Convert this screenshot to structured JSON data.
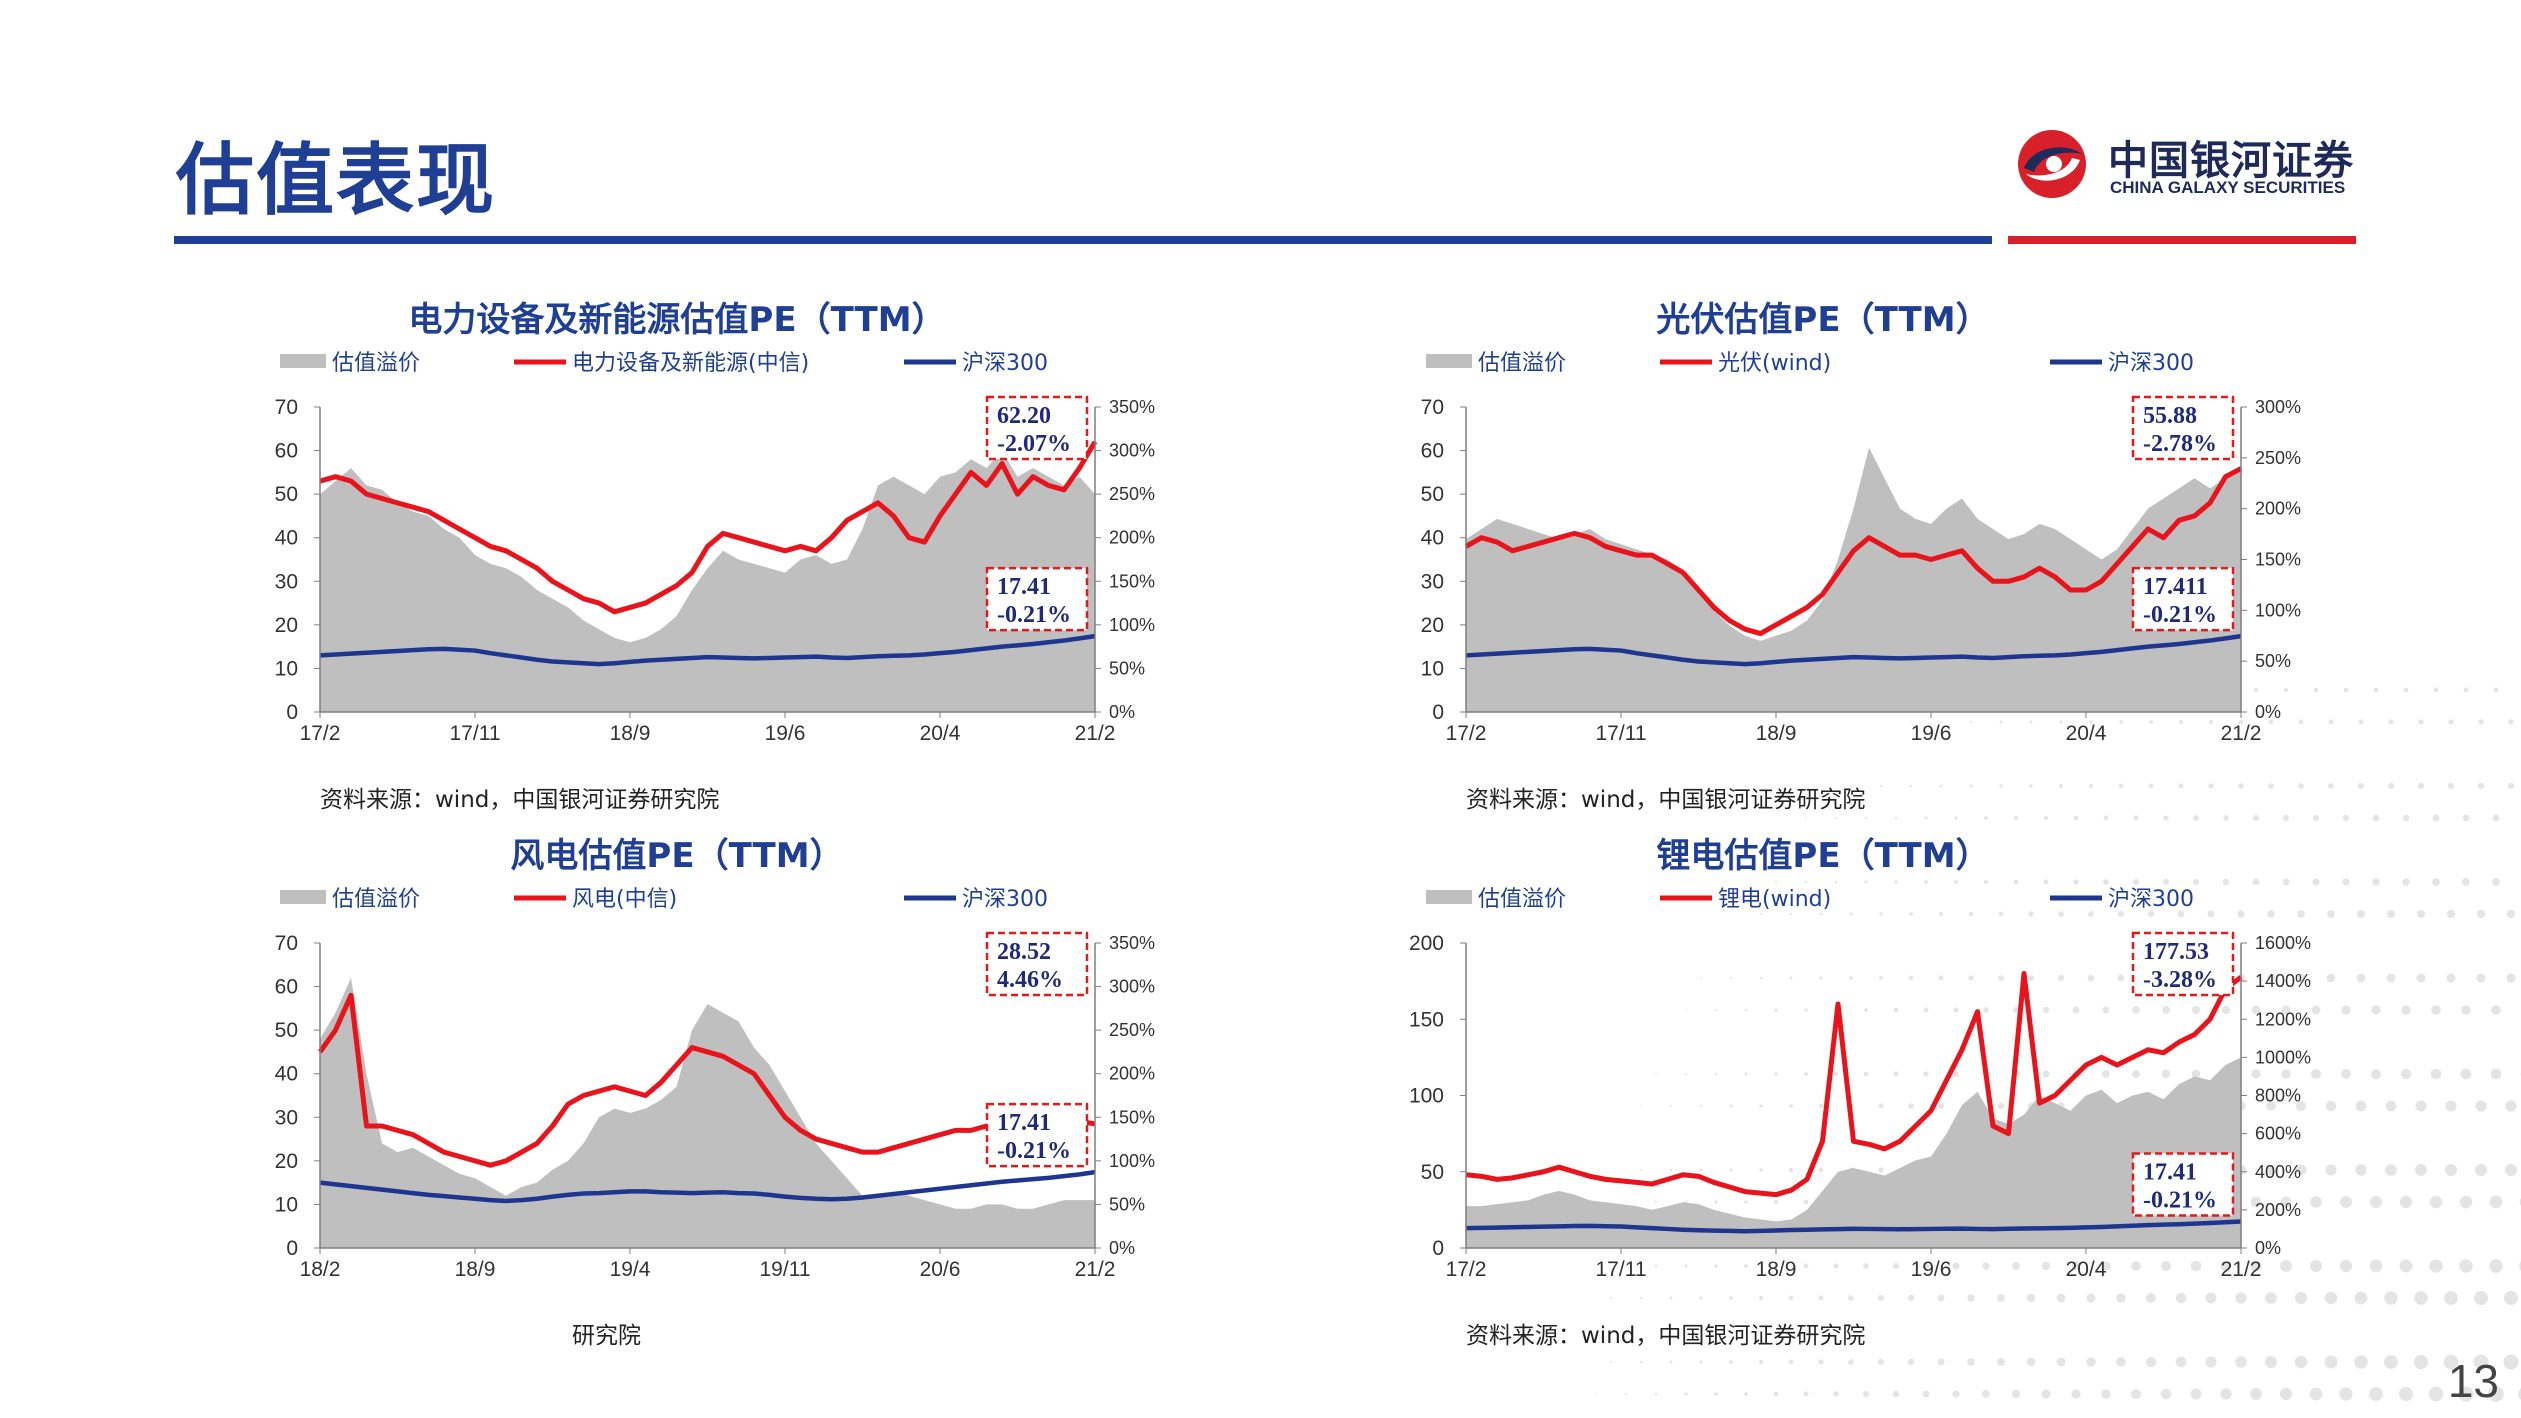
{
  "page": {
    "title": "估值表现",
    "number": "13"
  },
  "logo": {
    "name_cn": "中国银河证券",
    "name_en": "CHINA GALAXY SECURITIES"
  },
  "colors": {
    "brand_blue": "#1f3f94",
    "brand_red": "#d7202a",
    "premium": "#bfbfbf",
    "sector": "#e8131b",
    "hs300": "#1f3690"
  },
  "charts": [
    {
      "source": "资料来源：wind，中国银河证券研究院"
    },
    {
      "source": "资料来源：wind，中国银河证券研究院"
    },
    {
      "source": "研究院"
    },
    {
      "source": "资料来源：wind，中国银河证券研究院"
    }
  ],
  "chart_data": [
    {
      "type": "area",
      "title": "电力设备及新能源估值PE（TTM）",
      "xticks": [
        "17/2",
        "17/11",
        "18/9",
        "19/6",
        "20/4",
        "21/2"
      ],
      "ylim": [
        0,
        70
      ],
      "yticks": [
        0,
        10,
        20,
        30,
        40,
        50,
        60,
        70
      ],
      "y2lim": [
        0,
        350
      ],
      "y2ticks": [
        "0%",
        "50%",
        "100%",
        "150%",
        "200%",
        "250%",
        "300%",
        "350%"
      ],
      "legend": [
        "估值溢价",
        "电力设备及新能源(中信)",
        "沪深300"
      ],
      "annotations": [
        {
          "text": [
            "62.20",
            "-2.07%"
          ],
          "pos": "top"
        },
        {
          "text": [
            "17.41",
            "-0.21%"
          ],
          "pos": "low"
        }
      ],
      "series": [
        {
          "name": "估值溢价",
          "axis": "right",
          "kind": "area",
          "values": [
            250,
            265,
            280,
            260,
            255,
            240,
            230,
            225,
            210,
            200,
            180,
            170,
            165,
            155,
            140,
            130,
            120,
            105,
            95,
            85,
            80,
            85,
            95,
            110,
            140,
            165,
            185,
            175,
            170,
            165,
            160,
            175,
            180,
            170,
            175,
            210,
            260,
            270,
            260,
            250,
            270,
            275,
            290,
            280,
            300,
            270,
            280,
            270,
            260,
            270,
            250
          ]
        },
        {
          "name": "电力设备及新能源(中信)",
          "axis": "left",
          "kind": "line",
          "values": [
            53,
            54,
            53,
            50,
            49,
            48,
            47,
            46,
            44,
            42,
            40,
            38,
            37,
            35,
            33,
            30,
            28,
            26,
            25,
            23,
            24,
            25,
            27,
            29,
            32,
            38,
            41,
            40,
            39,
            38,
            37,
            38,
            37,
            40,
            44,
            46,
            48,
            45,
            40,
            39,
            45,
            50,
            55,
            52,
            57,
            50,
            54,
            52,
            51,
            56,
            62
          ]
        },
        {
          "name": "沪深300",
          "axis": "left",
          "kind": "line",
          "values": [
            13,
            13.2,
            13.4,
            13.6,
            13.8,
            14,
            14.2,
            14.4,
            14.5,
            14.3,
            14.1,
            13.5,
            13,
            12.5,
            12,
            11.6,
            11.4,
            11.2,
            11,
            11.2,
            11.5,
            11.8,
            12,
            12.2,
            12.4,
            12.6,
            12.5,
            12.4,
            12.3,
            12.4,
            12.5,
            12.6,
            12.7,
            12.5,
            12.4,
            12.6,
            12.8,
            12.9,
            13,
            13.2,
            13.5,
            13.8,
            14.2,
            14.6,
            15,
            15.3,
            15.6,
            16,
            16.4,
            16.9,
            17.41
          ]
        }
      ]
    },
    {
      "type": "area",
      "title": "光伏估值PE（TTM）",
      "xticks": [
        "17/2",
        "17/11",
        "18/9",
        "19/6",
        "20/4",
        "21/2"
      ],
      "ylim": [
        0,
        70
      ],
      "yticks": [
        0,
        10,
        20,
        30,
        40,
        50,
        60,
        70
      ],
      "y2lim": [
        0,
        300
      ],
      "y2ticks": [
        "0%",
        "50%",
        "100%",
        "150%",
        "200%",
        "250%",
        "300%"
      ],
      "legend": [
        "估值溢价",
        "光伏(wind)",
        "沪深300"
      ],
      "annotations": [
        {
          "text": [
            "55.88",
            "-2.78%"
          ],
          "pos": "top"
        },
        {
          "text": [
            "17.411",
            "-0.21%"
          ],
          "pos": "low"
        }
      ],
      "series": [
        {
          "name": "估值溢价",
          "axis": "right",
          "kind": "area",
          "values": [
            170,
            180,
            190,
            185,
            180,
            175,
            170,
            175,
            180,
            170,
            165,
            160,
            155,
            150,
            140,
            120,
            100,
            85,
            75,
            70,
            75,
            80,
            90,
            110,
            150,
            200,
            260,
            230,
            200,
            190,
            185,
            200,
            210,
            190,
            180,
            170,
            175,
            185,
            180,
            170,
            160,
            150,
            160,
            180,
            200,
            210,
            220,
            230,
            220,
            230,
            240
          ]
        },
        {
          "name": "光伏(wind)",
          "axis": "left",
          "kind": "line",
          "values": [
            38,
            40,
            39,
            37,
            38,
            39,
            40,
            41,
            40,
            38,
            37,
            36,
            36,
            34,
            32,
            28,
            24,
            21,
            19,
            18,
            20,
            22,
            24,
            27,
            32,
            37,
            40,
            38,
            36,
            36,
            35,
            36,
            37,
            33,
            30,
            30,
            31,
            33,
            31,
            28,
            28,
            30,
            34,
            38,
            42,
            40,
            44,
            45,
            48,
            54,
            55.88
          ]
        },
        {
          "name": "沪深300",
          "axis": "left",
          "kind": "line",
          "values": [
            13,
            13.2,
            13.4,
            13.6,
            13.8,
            14,
            14.2,
            14.4,
            14.5,
            14.3,
            14.1,
            13.5,
            13,
            12.5,
            12,
            11.6,
            11.4,
            11.2,
            11,
            11.2,
            11.5,
            11.8,
            12,
            12.2,
            12.4,
            12.6,
            12.5,
            12.4,
            12.3,
            12.4,
            12.5,
            12.6,
            12.7,
            12.5,
            12.4,
            12.6,
            12.8,
            12.9,
            13,
            13.2,
            13.5,
            13.8,
            14.2,
            14.6,
            15,
            15.3,
            15.6,
            16,
            16.4,
            16.9,
            17.41
          ]
        }
      ]
    },
    {
      "type": "area",
      "title": "风电估值PE（TTM）",
      "xticks": [
        "18/2",
        "18/9",
        "19/4",
        "19/11",
        "20/6",
        "21/2"
      ],
      "ylim": [
        0,
        70
      ],
      "yticks": [
        0,
        10,
        20,
        30,
        40,
        50,
        60,
        70
      ],
      "y2lim": [
        0,
        350
      ],
      "y2ticks": [
        "0%",
        "50%",
        "100%",
        "150%",
        "200%",
        "250%",
        "300%",
        "350%"
      ],
      "legend": [
        "估值溢价",
        "风电(中信)",
        "沪深300"
      ],
      "annotations": [
        {
          "text": [
            "28.52",
            "4.46%"
          ],
          "pos": "top"
        },
        {
          "text": [
            "17.41",
            "-0.21%"
          ],
          "pos": "low"
        }
      ],
      "series": [
        {
          "name": "估值溢价",
          "axis": "right",
          "kind": "area",
          "values": [
            240,
            270,
            310,
            200,
            120,
            110,
            115,
            105,
            95,
            85,
            80,
            70,
            60,
            70,
            75,
            90,
            100,
            120,
            150,
            160,
            155,
            160,
            170,
            185,
            250,
            280,
            270,
            260,
            230,
            210,
            180,
            150,
            120,
            100,
            80,
            60,
            60,
            65,
            60,
            55,
            50,
            45,
            45,
            50,
            50,
            45,
            45,
            50,
            55,
            55,
            55
          ]
        },
        {
          "name": "风电(中信)",
          "axis": "left",
          "kind": "line",
          "values": [
            45,
            50,
            58,
            28,
            28,
            27,
            26,
            24,
            22,
            21,
            20,
            19,
            20,
            22,
            24,
            28,
            33,
            35,
            36,
            37,
            36,
            35,
            38,
            42,
            46,
            45,
            44,
            42,
            40,
            35,
            30,
            27,
            25,
            24,
            23,
            22,
            22,
            23,
            24,
            25,
            26,
            27,
            27,
            28,
            28,
            26,
            27,
            28,
            29,
            29,
            28.52
          ]
        },
        {
          "name": "沪深300",
          "axis": "left",
          "kind": "line",
          "values": [
            15,
            14.6,
            14.2,
            13.8,
            13.4,
            13,
            12.6,
            12.2,
            11.9,
            11.6,
            11.3,
            11,
            10.8,
            11,
            11.3,
            11.8,
            12.2,
            12.5,
            12.6,
            12.8,
            13,
            13,
            12.8,
            12.7,
            12.6,
            12.7,
            12.8,
            12.6,
            12.5,
            12.2,
            11.8,
            11.5,
            11.3,
            11.2,
            11.3,
            11.6,
            12,
            12.4,
            12.8,
            13.2,
            13.6,
            14,
            14.4,
            14.8,
            15.2,
            15.5,
            15.8,
            16.1,
            16.5,
            16.9,
            17.41
          ]
        }
      ]
    },
    {
      "type": "area",
      "title": "锂电估值PE（TTM）",
      "xticks": [
        "17/2",
        "17/11",
        "18/9",
        "19/6",
        "20/4",
        "21/2"
      ],
      "ylim": [
        0,
        200
      ],
      "yticks": [
        0,
        50,
        100,
        150,
        200
      ],
      "y2lim": [
        0,
        1600
      ],
      "y2ticks": [
        "0%",
        "200%",
        "400%",
        "600%",
        "800%",
        "1000%",
        "1200%",
        "1400%",
        "1600%"
      ],
      "legend": [
        "估值溢价",
        "锂电(wind)",
        "沪深300"
      ],
      "annotations": [
        {
          "text": [
            "177.53",
            "-3.28%"
          ],
          "pos": "top"
        },
        {
          "text": [
            "17.41",
            "-0.21%"
          ],
          "pos": "low"
        }
      ],
      "series": [
        {
          "name": "估值溢价",
          "axis": "right",
          "kind": "area",
          "values": [
            220,
            220,
            230,
            240,
            250,
            280,
            300,
            280,
            250,
            240,
            230,
            220,
            200,
            220,
            240,
            230,
            200,
            180,
            160,
            150,
            140,
            150,
            200,
            300,
            400,
            420,
            400,
            380,
            420,
            460,
            480,
            600,
            750,
            820,
            680,
            650,
            700,
            800,
            760,
            720,
            800,
            830,
            760,
            800,
            820,
            780,
            860,
            900,
            880,
            960,
            1000
          ]
        },
        {
          "name": "锂电(wind)",
          "axis": "left",
          "kind": "line",
          "values": [
            48,
            47,
            45,
            46,
            48,
            50,
            53,
            50,
            47,
            45,
            44,
            43,
            42,
            45,
            48,
            47,
            43,
            40,
            37,
            36,
            35,
            38,
            45,
            70,
            160,
            70,
            68,
            65,
            70,
            80,
            90,
            110,
            130,
            155,
            80,
            75,
            180,
            95,
            100,
            110,
            120,
            125,
            120,
            125,
            130,
            128,
            135,
            140,
            150,
            170,
            177.53
          ]
        },
        {
          "name": "沪深300",
          "axis": "left",
          "kind": "line",
          "values": [
            13,
            13.2,
            13.4,
            13.6,
            13.8,
            14,
            14.2,
            14.4,
            14.5,
            14.3,
            14.1,
            13.5,
            13,
            12.5,
            12,
            11.6,
            11.4,
            11.2,
            11,
            11.2,
            11.5,
            11.8,
            12,
            12.2,
            12.4,
            12.6,
            12.5,
            12.4,
            12.3,
            12.4,
            12.5,
            12.6,
            12.7,
            12.5,
            12.4,
            12.6,
            12.8,
            12.9,
            13,
            13.2,
            13.5,
            13.8,
            14.2,
            14.6,
            15,
            15.3,
            15.6,
            16,
            16.4,
            16.9,
            17.41
          ]
        }
      ]
    }
  ]
}
